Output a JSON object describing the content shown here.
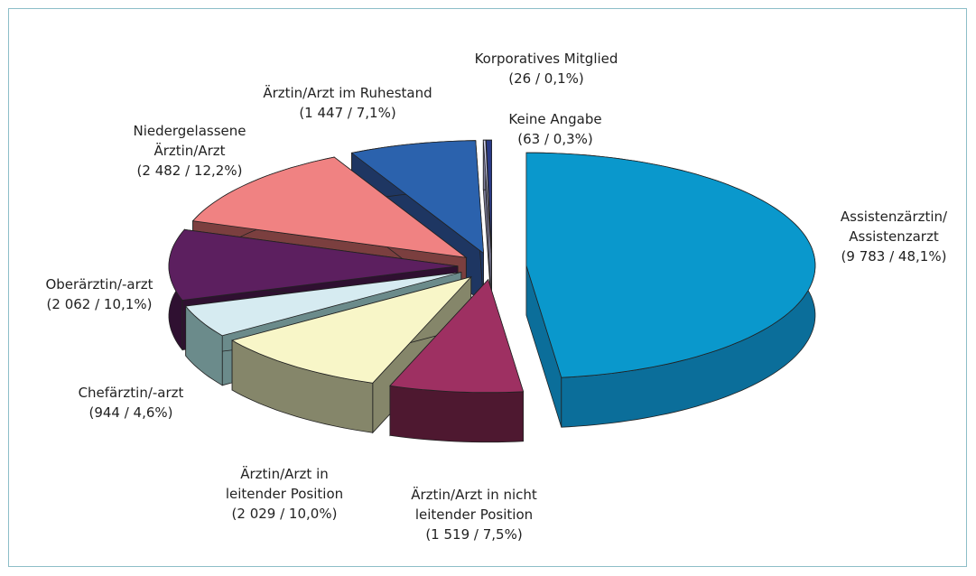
{
  "chart_data": {
    "type": "pie",
    "style": "3d-exploded",
    "categories": [
      [
        "Assistenzärztin/",
        "Assistenzarzt"
      ],
      [
        "Ärztin/Arzt in nicht",
        "leitender Position"
      ],
      [
        "Ärztin/Arzt in",
        "leitender Position"
      ],
      [
        "Chefärztin/-arzt"
      ],
      [
        "Oberärztin/-arzt"
      ],
      [
        "Niedergelassene",
        "Ärztin/Arzt"
      ],
      [
        "Ärztin/Arzt im Ruhestand"
      ],
      [
        "Korporatives Mitglied"
      ],
      [
        "Keine Angabe"
      ]
    ],
    "values": [
      9783,
      1519,
      2029,
      944,
      2062,
      2482,
      1447,
      26,
      63
    ],
    "percentages": [
      48.1,
      7.5,
      10.0,
      4.6,
      10.1,
      12.2,
      7.1,
      0.1,
      0.3
    ],
    "value_labels": [
      "(9 783 / 48,1%)",
      "(1 519 / 7,5%)",
      "(2 029 / 10,0%)",
      "(944 / 4,6%)",
      "(2 062 / 10,1%)",
      "(2 482 / 12,2%)",
      "(1 447 / 7,1%)",
      "(26 / 0,1%)",
      "(63 / 0,3%)"
    ],
    "colors": [
      "#0a98cc",
      "#9e3062",
      "#f8f6c8",
      "#d6ebf1",
      "#5c1f5f",
      "#f08282",
      "#2b62ad",
      "#cfcfee",
      "#2a3a86"
    ],
    "side_colors": [
      "#0b6e9a",
      "#4e1830",
      "#85866a",
      "#6b8b8b",
      "#2f1031",
      "#7b3f3f",
      "#1e3662",
      "#7d7d9a",
      "#18224f"
    ]
  }
}
